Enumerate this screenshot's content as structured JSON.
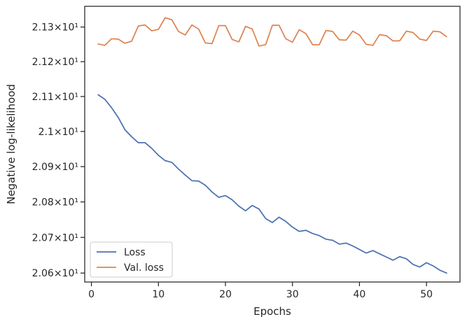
{
  "chart_data": {
    "type": "line",
    "xlabel": "Epochs",
    "ylabel": "Negative log-likelihood",
    "xlim": [
      -1,
      55
    ],
    "ylim": [
      20.575,
      21.36
    ],
    "xticks": [
      0,
      10,
      20,
      30,
      40,
      50
    ],
    "xtick_labels": [
      "0",
      "10",
      "20",
      "30",
      "40",
      "50"
    ],
    "yticks": [
      20.6,
      20.7,
      20.8,
      20.9,
      21.0,
      21.1,
      21.2,
      21.3
    ],
    "ytick_labels": [
      "2.06×10¹",
      "2.07×10¹",
      "2.08×10¹",
      "2.09×10¹",
      "2.1×10¹",
      "2.11×10¹",
      "2.12×10¹",
      "2.13×10¹"
    ],
    "y_scale": "log",
    "grid": false,
    "legend_position": "lower-left",
    "x": [
      1,
      2,
      3,
      4,
      5,
      6,
      7,
      8,
      9,
      10,
      11,
      12,
      13,
      14,
      15,
      16,
      17,
      18,
      19,
      20,
      21,
      22,
      23,
      24,
      25,
      26,
      27,
      28,
      29,
      30,
      31,
      32,
      33,
      34,
      35,
      36,
      37,
      38,
      39,
      40,
      41,
      42,
      43,
      44,
      45,
      46,
      47,
      48,
      49,
      50,
      51,
      52,
      53
    ],
    "series": [
      {
        "name": "Loss",
        "color": "#4c72b0",
        "values": [
          21.105,
          21.092,
          21.068,
          21.04,
          21.005,
          20.985,
          20.968,
          20.968,
          20.952,
          20.932,
          20.917,
          20.912,
          20.893,
          20.876,
          20.86,
          20.859,
          20.847,
          20.828,
          20.813,
          20.818,
          20.806,
          20.788,
          20.775,
          20.79,
          20.78,
          20.753,
          20.742,
          20.757,
          20.745,
          20.729,
          20.717,
          20.72,
          20.711,
          20.705,
          20.695,
          20.692,
          20.681,
          20.684,
          20.676,
          20.666,
          20.656,
          20.663,
          20.654,
          20.645,
          20.636,
          20.646,
          20.64,
          20.624,
          20.617,
          20.629,
          20.62,
          20.608,
          20.6
        ]
      },
      {
        "name": "Val. loss",
        "color": "#dd8452",
        "values": [
          21.251,
          21.247,
          21.266,
          21.265,
          21.253,
          21.259,
          21.303,
          21.306,
          21.289,
          21.293,
          21.327,
          21.321,
          21.287,
          21.277,
          21.306,
          21.294,
          21.254,
          21.252,
          21.304,
          21.304,
          21.264,
          21.257,
          21.302,
          21.294,
          21.245,
          21.249,
          21.305,
          21.305,
          21.266,
          21.256,
          21.292,
          21.281,
          21.249,
          21.249,
          21.29,
          21.287,
          21.263,
          21.262,
          21.288,
          21.277,
          21.25,
          21.247,
          21.278,
          21.275,
          21.26,
          21.26,
          21.288,
          21.284,
          21.265,
          21.261,
          21.288,
          21.286,
          21.272
        ]
      }
    ]
  }
}
